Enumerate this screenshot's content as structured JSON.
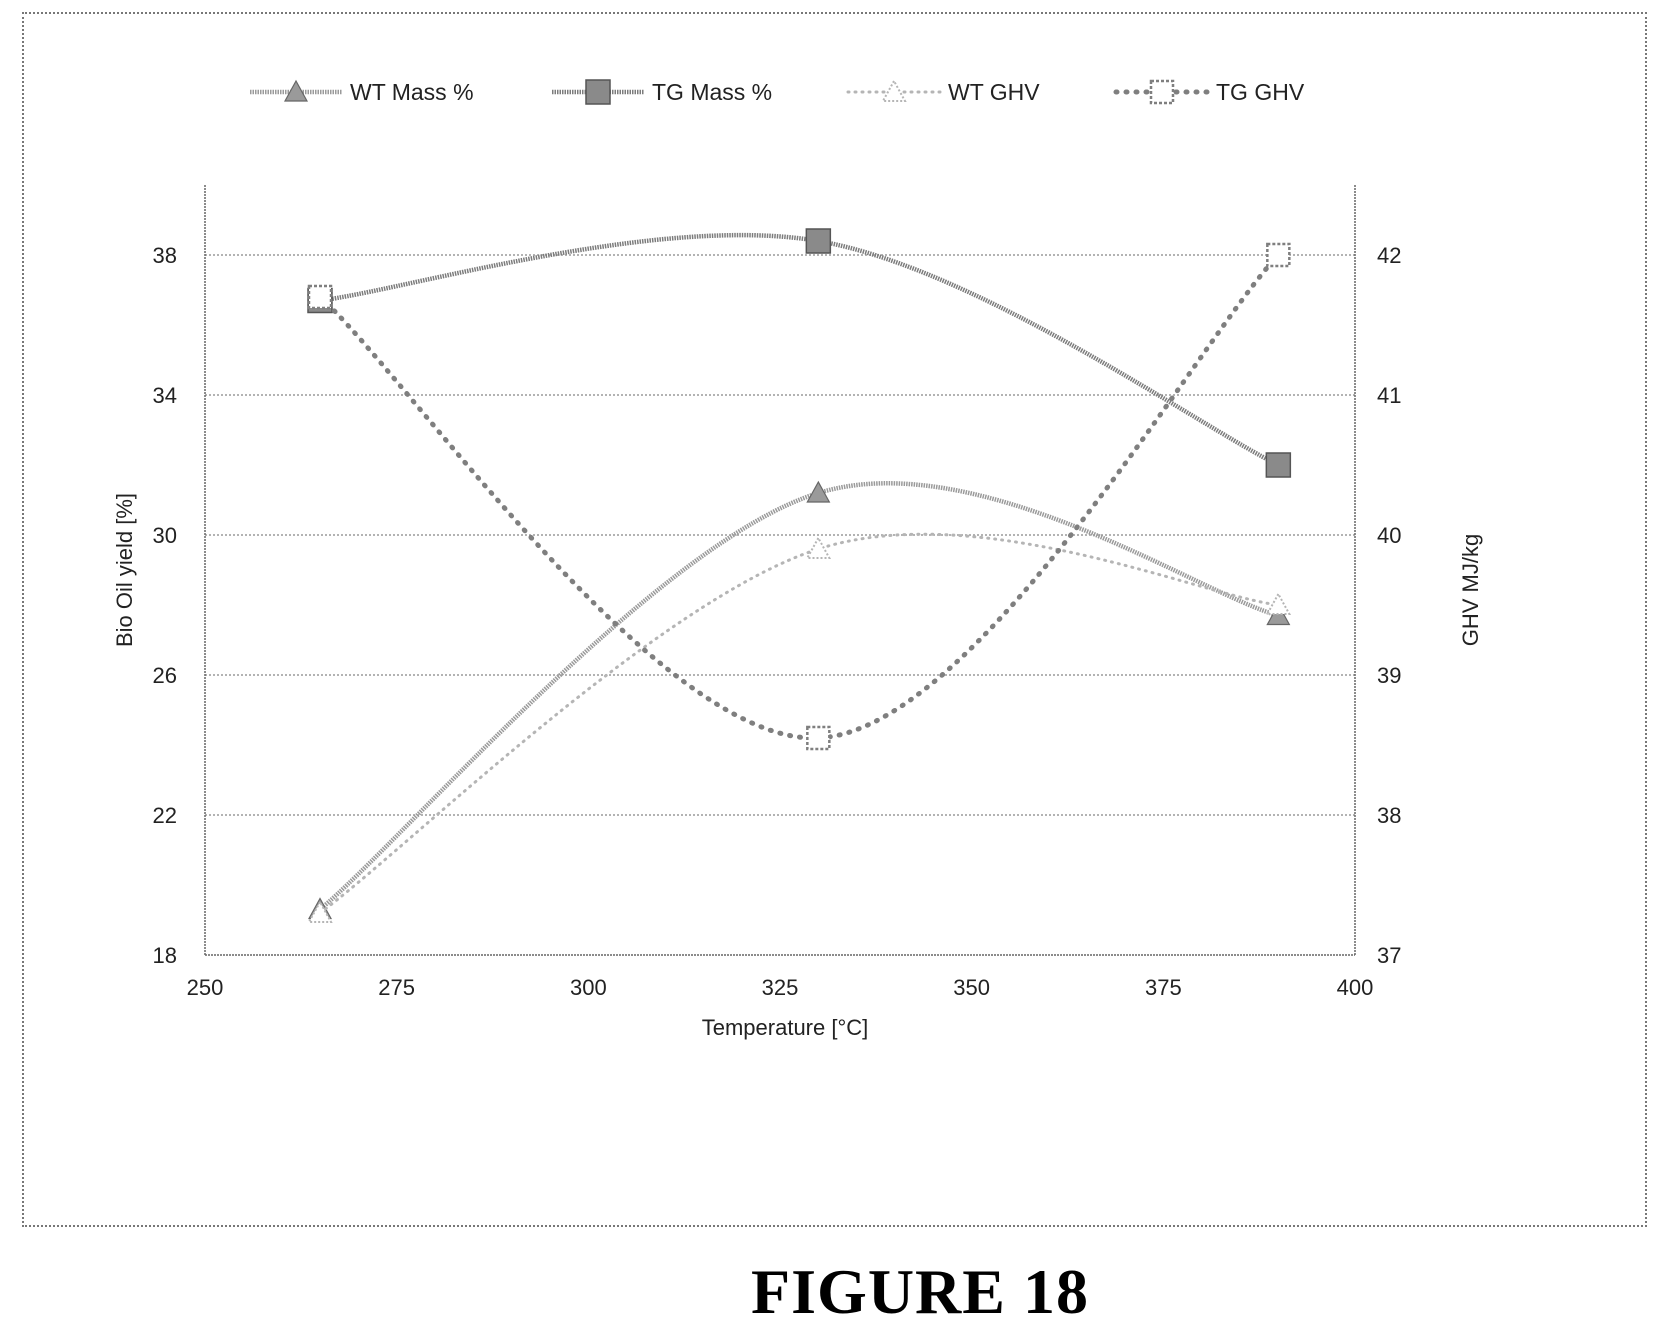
{
  "figure": {
    "caption": "FIGURE 18"
  },
  "chart_data": {
    "type": "line",
    "xlabel": "Temperature [°C]",
    "ylabel": "Bio Oil yield  [%]",
    "y2label": "GHV MJ/kg",
    "xlim": [
      250,
      400
    ],
    "ylim": [
      18,
      40
    ],
    "y2lim": [
      37,
      42.5
    ],
    "x_ticks": [
      250,
      275,
      300,
      325,
      350,
      375,
      400
    ],
    "y_ticks": [
      18,
      22,
      26,
      30,
      34,
      38
    ],
    "y2_ticks": [
      37,
      38,
      39,
      40,
      41,
      42
    ],
    "grid": "horizontal",
    "legend_position": "top",
    "series": [
      {
        "name": "WT Mass %",
        "axis": "left",
        "marker": "triangle",
        "style": "solid",
        "color": "#9a9a9a",
        "x": [
          265,
          330,
          390
        ],
        "y": [
          19.3,
          31.2,
          27.7
        ]
      },
      {
        "name": "TG Mass %",
        "axis": "left",
        "marker": "square",
        "style": "solid",
        "color": "#7c7c7c",
        "x": [
          265,
          330,
          390
        ],
        "y": [
          36.7,
          38.4,
          32.0
        ]
      },
      {
        "name": "WT GHV",
        "axis": "right",
        "marker": "triangle-open",
        "style": "dotted",
        "color": "#b5b5b5",
        "x": [
          265,
          330,
          390
        ],
        "y": [
          37.3,
          39.9,
          39.5
        ]
      },
      {
        "name": "TG GHV",
        "axis": "right",
        "marker": "square-open",
        "style": "dotted",
        "color": "#7f7f7f",
        "x": [
          265,
          330,
          390
        ],
        "y": [
          41.7,
          38.55,
          42.0
        ]
      }
    ]
  }
}
